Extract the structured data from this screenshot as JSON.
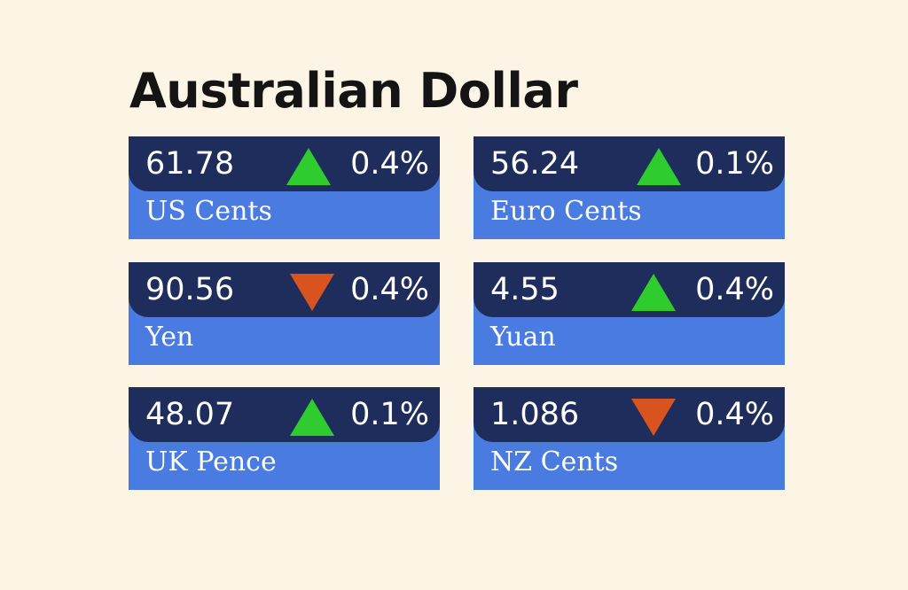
{
  "title": "Australian Dollar",
  "colors": {
    "background": "#fcf4e4",
    "card_top": "#1f2d5c",
    "card_bottom": "#4a7be0",
    "up": "#2ecc2e",
    "down": "#d9531e"
  },
  "rates": [
    {
      "value": "61.78",
      "direction": "up",
      "change": "0.4%",
      "label": "US Cents"
    },
    {
      "value": "56.24",
      "direction": "up",
      "change": "0.1%",
      "label": "Euro Cents"
    },
    {
      "value": "90.56",
      "direction": "down",
      "change": "0.4%",
      "label": "Yen"
    },
    {
      "value": "4.55",
      "direction": "up",
      "change": "0.4%",
      "label": "Yuan"
    },
    {
      "value": "48.07",
      "direction": "up",
      "change": "0.1%",
      "label": "UK Pence"
    },
    {
      "value": "1.086",
      "direction": "down",
      "change": "0.4%",
      "label": "NZ Cents"
    }
  ]
}
